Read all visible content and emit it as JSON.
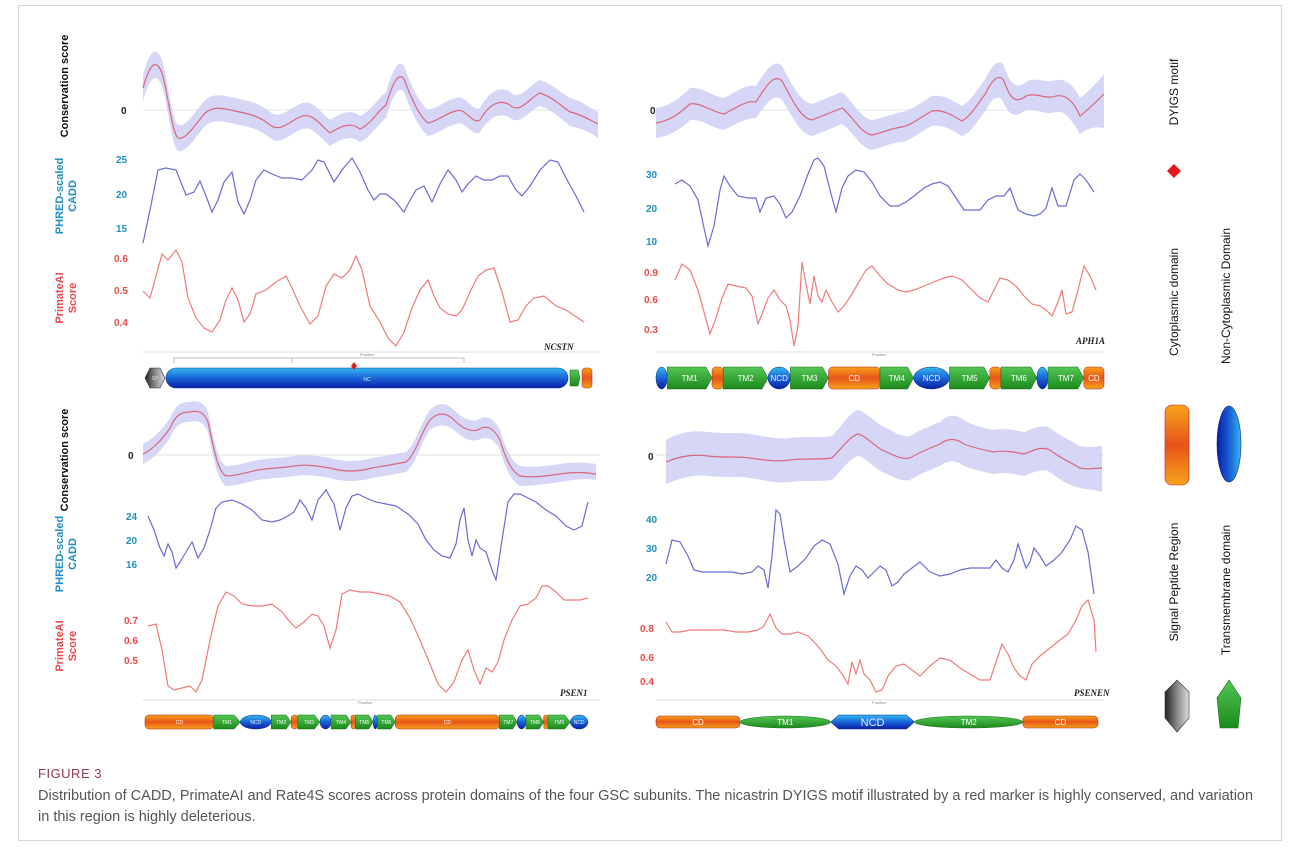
{
  "figure": {
    "label": "FIGURE 3",
    "caption": "Distribution of CADD, PrimateAI and Rate4S scores across protein domains of the four GSC subunits. The nicastrin DYIGS motif illustrated by a red marker is highly conserved, and variation in this region is highly deleterious."
  },
  "row_labels": {
    "conservation": "Conservation score",
    "cadd_line1": "PHRED-scaled",
    "cadd_line2": "CADD",
    "primate_line1": "PrimateAI",
    "primate_line2": "Score"
  },
  "colors": {
    "conservation_line": "#d9677c",
    "conservation_band": "#c8c8f2",
    "cadd_line": "#6a6ad8",
    "primate_line": "#f07a7a",
    "cadd_label": "#1e8fc0",
    "primate_label": "#e84848",
    "cons_label": "#111111",
    "cd_grad_start": "#d82020",
    "cd_grad_end": "#f6a21a",
    "ncd_grad_start": "#0a1ea8",
    "ncd_grad_end": "#33a8ec",
    "tm": "#2ea52e",
    "signal": "#555555",
    "dyigs": "#e41a1a"
  },
  "panels": [
    {
      "gene": "NCSTN",
      "cons_tick": "0",
      "cadd_ticks": [
        "25",
        "20",
        "15"
      ],
      "primate_ticks": [
        "0.6",
        "0.5",
        "0.4"
      ],
      "axis_label": "Position",
      "domains": [
        {
          "type": "signal",
          "label": "SP",
          "start": 0.0,
          "end": 0.05
        },
        {
          "type": "ncd",
          "label": "NC",
          "start": 0.05,
          "end": 0.965
        },
        {
          "type": "tm",
          "label": "TM",
          "start": 0.965,
          "end": 0.985
        },
        {
          "type": "cd",
          "label": "CD",
          "start": 0.985,
          "end": 1.0
        }
      ]
    },
    {
      "gene": "APH1A",
      "cons_tick": "0",
      "cadd_ticks": [
        "30",
        "20",
        "10"
      ],
      "primate_ticks": [
        "0.9",
        "0.6",
        "0.3"
      ],
      "axis_label": "Position",
      "domains": [
        {
          "type": "ncd",
          "label": "NCD",
          "start": 0.0,
          "end": 0.025
        },
        {
          "type": "tm",
          "label": "TM1",
          "start": 0.025,
          "end": 0.125
        },
        {
          "type": "cd",
          "label": "CD",
          "start": 0.125,
          "end": 0.15
        },
        {
          "type": "tm",
          "label": "TM2",
          "start": 0.15,
          "end": 0.25
        },
        {
          "type": "ncd",
          "label": "NCD",
          "start": 0.25,
          "end": 0.3
        },
        {
          "type": "tm",
          "label": "TM3",
          "start": 0.3,
          "end": 0.385
        },
        {
          "type": "cd",
          "label": "CD",
          "start": 0.385,
          "end": 0.5
        },
        {
          "type": "tm",
          "label": "TM4",
          "start": 0.5,
          "end": 0.575
        },
        {
          "type": "ncd",
          "label": "NCD",
          "start": 0.575,
          "end": 0.655
        },
        {
          "type": "tm",
          "label": "TM5",
          "start": 0.655,
          "end": 0.745
        },
        {
          "type": "cd",
          "label": "CD",
          "start": 0.745,
          "end": 0.77
        },
        {
          "type": "tm",
          "label": "TM6",
          "start": 0.77,
          "end": 0.85
        },
        {
          "type": "ncd",
          "label": "NCD",
          "start": 0.85,
          "end": 0.875
        },
        {
          "type": "tm",
          "label": "TM7",
          "start": 0.875,
          "end": 0.955
        },
        {
          "type": "cd",
          "label": "CD",
          "start": 0.955,
          "end": 1.0
        }
      ]
    },
    {
      "gene": "PSEN1",
      "cons_tick": "0",
      "cadd_ticks": [
        "24",
        "20",
        "16"
      ],
      "primate_ticks": [
        "0.7",
        "0.6",
        "0.5"
      ],
      "axis_label": "Position",
      "domains": [
        {
          "type": "cd",
          "label": "CD",
          "start": 0.0,
          "end": 0.155
        },
        {
          "type": "tm",
          "label": "TM1",
          "start": 0.155,
          "end": 0.215
        },
        {
          "type": "ncd",
          "label": "NCD",
          "start": 0.215,
          "end": 0.285
        },
        {
          "type": "tm",
          "label": "TM2",
          "start": 0.285,
          "end": 0.33
        },
        {
          "type": "cd",
          "label": "CD",
          "start": 0.33,
          "end": 0.345
        },
        {
          "type": "tm",
          "label": "TM3",
          "start": 0.345,
          "end": 0.395
        },
        {
          "type": "ncd",
          "label": "NCD",
          "start": 0.395,
          "end": 0.42
        },
        {
          "type": "tm",
          "label": "TM4",
          "start": 0.42,
          "end": 0.465
        },
        {
          "type": "cd",
          "label": "CD",
          "start": 0.465,
          "end": 0.475
        },
        {
          "type": "tm",
          "label": "TM5",
          "start": 0.475,
          "end": 0.515
        },
        {
          "type": "ncd",
          "label": "NCD",
          "start": 0.515,
          "end": 0.525
        },
        {
          "type": "tm",
          "label": "TM6",
          "start": 0.525,
          "end": 0.565
        },
        {
          "type": "cd",
          "label": "CD",
          "start": 0.565,
          "end": 0.8
        },
        {
          "type": "tm",
          "label": "TM7",
          "start": 0.8,
          "end": 0.84
        },
        {
          "type": "ncd",
          "label": "NCD",
          "start": 0.84,
          "end": 0.86
        },
        {
          "type": "tm",
          "label": "TM8",
          "start": 0.86,
          "end": 0.9
        },
        {
          "type": "cd",
          "label": "CD",
          "start": 0.9,
          "end": 0.91
        },
        {
          "type": "tm",
          "label": "TM9",
          "start": 0.91,
          "end": 0.96
        },
        {
          "type": "ncd",
          "label": "NCD",
          "start": 0.96,
          "end": 1.0
        }
      ]
    },
    {
      "gene": "PSENEN",
      "cons_tick": "0",
      "cadd_ticks": [
        "40",
        "30",
        "20"
      ],
      "primate_ticks": [
        "0.8",
        "0.6",
        "0.4"
      ],
      "axis_label": "Position",
      "domains": [
        {
          "type": "cd",
          "label": "CD",
          "start": 0.0,
          "end": 0.19
        },
        {
          "type": "tm-ellipse",
          "label": "TM1",
          "start": 0.19,
          "end": 0.395
        },
        {
          "type": "ncd-hex",
          "label": "NCD",
          "start": 0.395,
          "end": 0.585
        },
        {
          "type": "tm-ellipse",
          "label": "TM2",
          "start": 0.585,
          "end": 0.83
        },
        {
          "type": "cd",
          "label": "CD",
          "start": 0.83,
          "end": 1.0
        }
      ]
    }
  ],
  "legend": {
    "dyigs": "DYIGS motif",
    "cytoplasmic": "Cytoplasmic domain",
    "noncytoplasmic": "Non-Cytoplasmic Domain",
    "signal": "Signal Peptide Region",
    "transmembrane": "Transmembrane domain"
  }
}
